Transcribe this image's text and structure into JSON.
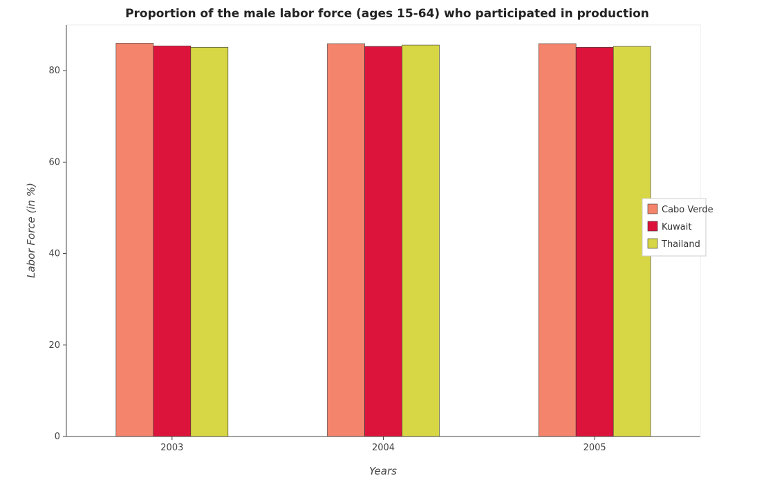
{
  "chart_data": {
    "type": "bar",
    "title": "Proportion of the male labor force (ages 15-64) who participated in production",
    "xlabel": "Years",
    "ylabel": "Labor Force (in %)",
    "categories": [
      "2003",
      "2004",
      "2005"
    ],
    "ylim": [
      0,
      90
    ],
    "yticks": [
      0,
      20,
      40,
      60,
      80
    ],
    "grid": false,
    "legend_position": "right",
    "series": [
      {
        "name": "Cabo Verde",
        "color": "#f4846c",
        "values": [
          86.0,
          85.9,
          85.9
        ]
      },
      {
        "name": "Kuwait",
        "color": "#dc143c",
        "values": [
          85.4,
          85.3,
          85.1
        ]
      },
      {
        "name": "Thailand",
        "color": "#d7d746",
        "values": [
          85.1,
          85.6,
          85.3
        ]
      }
    ]
  }
}
